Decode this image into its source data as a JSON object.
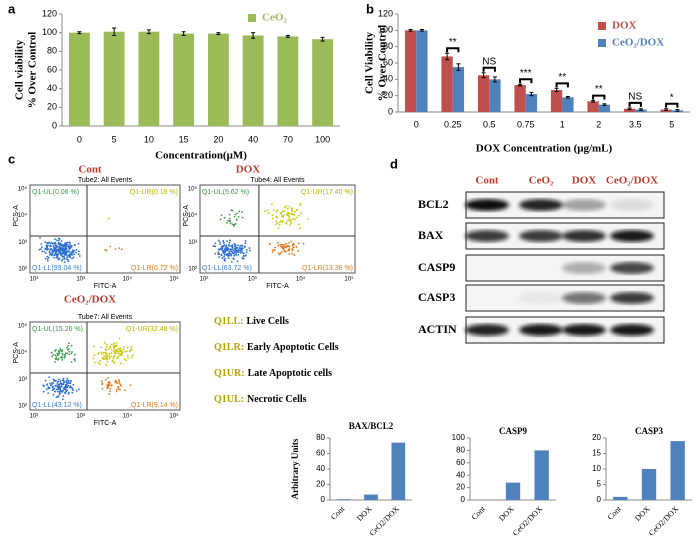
{
  "panels": [
    "a",
    "b",
    "c",
    "d"
  ],
  "chart_data": [
    {
      "type": "bar",
      "categories": [
        "0",
        "5",
        "10",
        "15",
        "20",
        "40",
        "70",
        "100"
      ],
      "series": [
        {
          "name": "CeO₂",
          "color": "#9bbb59",
          "values": [
            100,
            101,
            101,
            99,
            99,
            97,
            96,
            93
          ],
          "errors": [
            1,
            4,
            2,
            2,
            1,
            3,
            1,
            2
          ]
        }
      ],
      "ylabel": [
        "Cell viability",
        "% Over Control"
      ],
      "xlabel": "Concentration(μM)",
      "ylim": [
        0,
        120
      ],
      "yticks": [
        0,
        20,
        40,
        60,
        80,
        100,
        120
      ],
      "legend": "top-right"
    },
    {
      "type": "bar",
      "categories": [
        "0",
        "0.25",
        "0.5",
        "0.75",
        "1",
        "2",
        "3.5",
        "5"
      ],
      "series": [
        {
          "name": "DOX",
          "color": "#c0504d",
          "values": [
            100,
            68,
            45,
            33,
            27,
            13,
            4,
            3
          ],
          "errors": [
            1,
            4,
            3,
            1,
            2,
            1,
            1,
            1
          ]
        },
        {
          "name": "CeO₂/DOX",
          "color": "#4f81bd",
          "values": [
            100,
            55,
            40,
            22,
            18,
            9,
            3,
            2
          ],
          "errors": [
            1,
            4,
            3,
            2,
            1,
            1,
            1,
            1
          ]
        }
      ],
      "significance": [
        null,
        "**",
        "NS",
        "***",
        "**",
        "**",
        "NS",
        "*"
      ],
      "ylabel": [
        "Cell Viability",
        "% Over Control"
      ],
      "xlabel": "DOX Concentration (μg/mL)",
      "ylim": [
        0,
        120
      ],
      "yticks": [
        0,
        20,
        40,
        60,
        80,
        100,
        120
      ],
      "legend": "top-right"
    },
    {
      "type": "bar",
      "title": "BAX/BCL2",
      "ylabel": "Arbitrary Units",
      "categories": [
        "Cont",
        "DOX",
        "CeO2/DOX"
      ],
      "values": [
        1,
        7,
        74
      ],
      "color": "#4f81bd",
      "ylim": [
        0,
        80
      ],
      "yticks": [
        0,
        20,
        40,
        60,
        80
      ]
    },
    {
      "type": "bar",
      "title": "CASP9",
      "categories": [
        "Cont",
        "DOX",
        "CeO2/DOX"
      ],
      "values": [
        0,
        28,
        80
      ],
      "color": "#4f81bd",
      "ylim": [
        0,
        100
      ],
      "yticks": [
        0,
        20,
        40,
        60,
        80,
        100
      ]
    },
    {
      "type": "bar",
      "title": "CASP3",
      "categories": [
        "Cont",
        "DOX",
        "CeO2/DOX"
      ],
      "values": [
        1,
        10,
        19
      ],
      "color": "#4f81bd",
      "ylim": [
        0,
        20
      ],
      "yticks": [
        0,
        5,
        10,
        15,
        20
      ]
    }
  ],
  "flow": [
    {
      "title": "Cont",
      "header": "Tube2: All Events",
      "quadrants": [
        "Q1-UL(0.06 %)",
        "Q1-UR(0.18 %)",
        "Q1-LL(99.04 %)",
        "Q1-LR(0.72 %)"
      ]
    },
    {
      "title": "DOX",
      "header": "Tube4: All Events",
      "quadrants": [
        "Q1-UL(5.62 %)",
        "Q1-UR(17.40 %)",
        "Q1-LL(63.72 %)",
        "Q1-LR(13.36 %)"
      ]
    },
    {
      "title": "CeO₂/DOX",
      "header": "Tube7: All Events",
      "quadrants": [
        "Q1-UL(15.26 %)",
        "Q1-UR(32.48 %)",
        "Q1-LL(43.12 %)",
        "Q1-LR(9.14 %)"
      ]
    }
  ],
  "flow_axes": {
    "x": "FITC-A",
    "y": "PCS-A",
    "ticks": [
      "10²",
      "10³",
      "10⁴",
      "10⁵"
    ]
  },
  "flow_legend": [
    {
      "key": "Q1LL:",
      "text": "Live Cells"
    },
    {
      "key": "Q1LR:",
      "text": "Early Apoptotic Cells"
    },
    {
      "key": "Q1UR:",
      "text": "Late Apoptotic cells"
    },
    {
      "key": "Q1UL:",
      "text": "Necrotic Cells"
    }
  ],
  "blot": {
    "columns": [
      "Cont",
      "CeO₂",
      "DOX",
      "CeO₂/DOX"
    ],
    "rows": [
      "BCL2",
      "BAX",
      "CASP9",
      "CASP3",
      "ACTIN"
    ]
  }
}
